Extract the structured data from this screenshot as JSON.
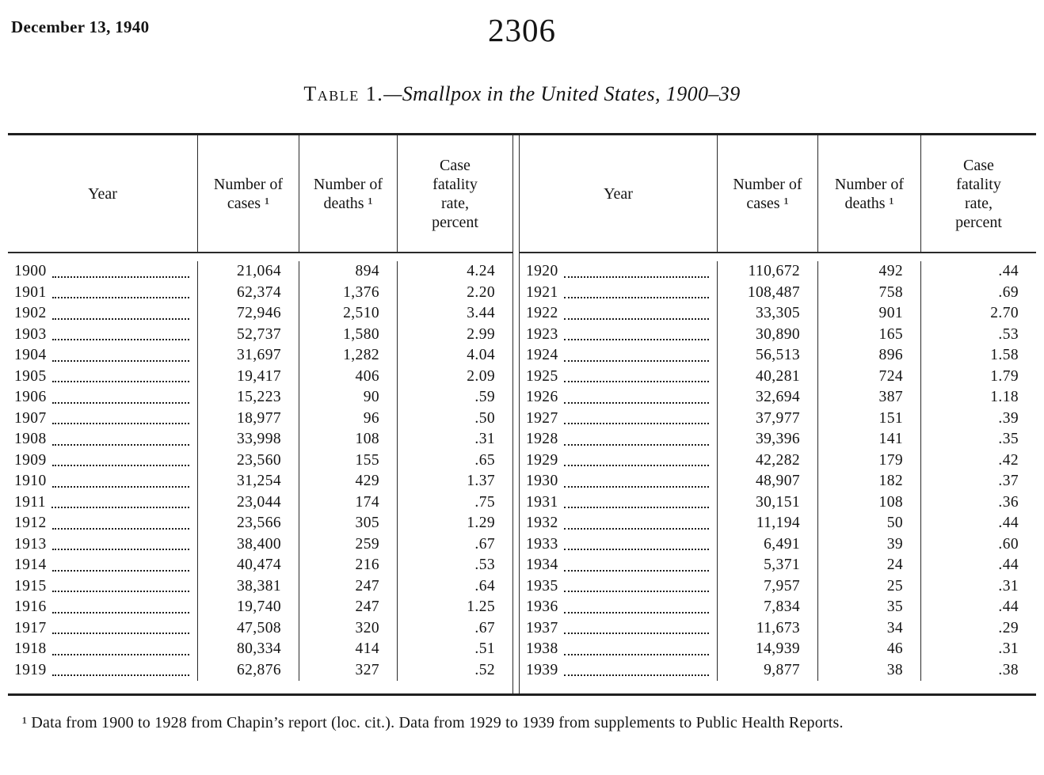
{
  "page": {
    "date": "December 13, 1940",
    "page_number": "2306"
  },
  "title": {
    "label": "Table 1.",
    "italic": "—Smallpox in the United States, 1900–39"
  },
  "table": {
    "column_headers": [
      "Year",
      "Number of cases ¹",
      "Number of deaths ¹",
      "Case fatality rate, percent"
    ]
  },
  "footnote": "¹ Data from 1900 to 1928 from Chapin’s report (loc. cit.).  Data from 1929 to 1939 from supplements to Public Health Reports.",
  "chart_data": {
    "type": "table",
    "title": "Table 1.—Smallpox in the United States, 1900–39",
    "columns": [
      "Year",
      "Number of cases",
      "Number of deaths",
      "Case fatality rate, percent"
    ],
    "left_rows": [
      [
        "1900",
        "21,064",
        "894",
        "4.24"
      ],
      [
        "1901",
        "62,374",
        "1,376",
        "2.20"
      ],
      [
        "1902",
        "72,946",
        "2,510",
        "3.44"
      ],
      [
        "1903",
        "52,737",
        "1,580",
        "2.99"
      ],
      [
        "1904",
        "31,697",
        "1,282",
        "4.04"
      ],
      [
        "1905",
        "19,417",
        "406",
        "2.09"
      ],
      [
        "1906",
        "15,223",
        "90",
        ".59"
      ],
      [
        "1907",
        "18,977",
        "96",
        ".50"
      ],
      [
        "1908",
        "33,998",
        "108",
        ".31"
      ],
      [
        "1909",
        "23,560",
        "155",
        ".65"
      ],
      [
        "1910",
        "31,254",
        "429",
        "1.37"
      ],
      [
        "1911",
        "23,044",
        "174",
        ".75"
      ],
      [
        "1912",
        "23,566",
        "305",
        "1.29"
      ],
      [
        "1913",
        "38,400",
        "259",
        ".67"
      ],
      [
        "1914",
        "40,474",
        "216",
        ".53"
      ],
      [
        "1915",
        "38,381",
        "247",
        ".64"
      ],
      [
        "1916",
        "19,740",
        "247",
        "1.25"
      ],
      [
        "1917",
        "47,508",
        "320",
        ".67"
      ],
      [
        "1918",
        "80,334",
        "414",
        ".51"
      ],
      [
        "1919",
        "62,876",
        "327",
        ".52"
      ]
    ],
    "right_rows": [
      [
        "1920",
        "110,672",
        "492",
        ".44"
      ],
      [
        "1921",
        "108,487",
        "758",
        ".69"
      ],
      [
        "1922",
        "33,305",
        "901",
        "2.70"
      ],
      [
        "1923",
        "30,890",
        "165",
        ".53"
      ],
      [
        "1924",
        "56,513",
        "896",
        "1.58"
      ],
      [
        "1925",
        "40,281",
        "724",
        "1.79"
      ],
      [
        "1926",
        "32,694",
        "387",
        "1.18"
      ],
      [
        "1927",
        "37,977",
        "151",
        ".39"
      ],
      [
        "1928",
        "39,396",
        "141",
        ".35"
      ],
      [
        "1929",
        "42,282",
        "179",
        ".42"
      ],
      [
        "1930",
        "48,907",
        "182",
        ".37"
      ],
      [
        "1931",
        "30,151",
        "108",
        ".36"
      ],
      [
        "1932",
        "11,194",
        "50",
        ".44"
      ],
      [
        "1933",
        "6,491",
        "39",
        ".60"
      ],
      [
        "1934",
        "5,371",
        "24",
        ".44"
      ],
      [
        "1935",
        "7,957",
        "25",
        ".31"
      ],
      [
        "1936",
        "7,834",
        "35",
        ".44"
      ],
      [
        "1937",
        "11,673",
        "34",
        ".29"
      ],
      [
        "1938",
        "14,939",
        "46",
        ".31"
      ],
      [
        "1939",
        "9,877",
        "38",
        ".38"
      ]
    ]
  }
}
